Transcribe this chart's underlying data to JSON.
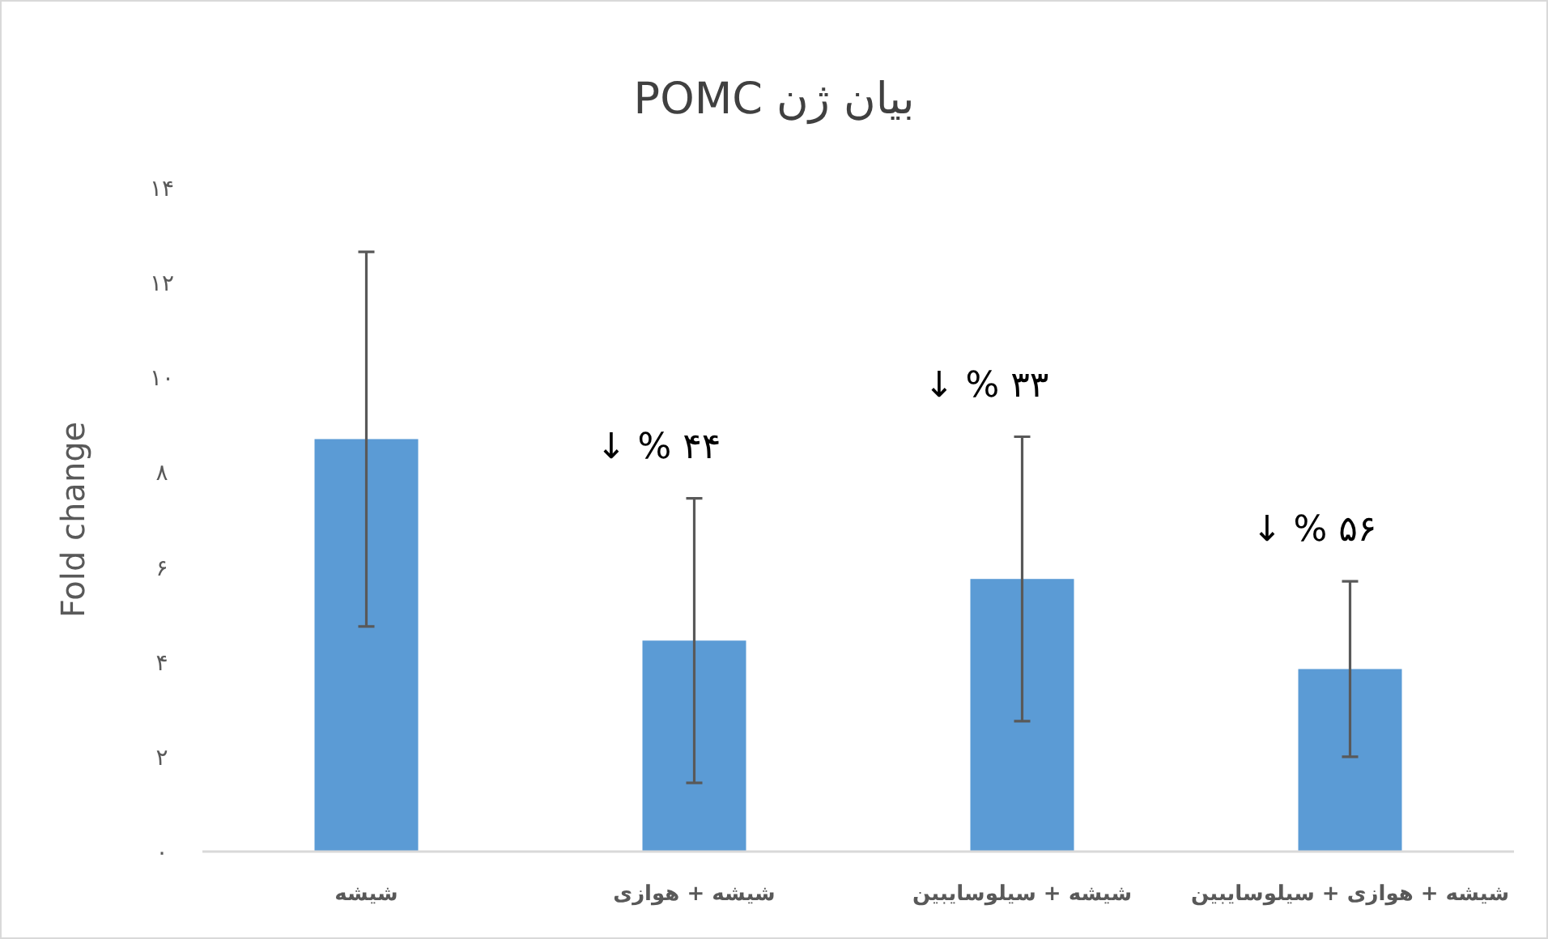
{
  "chart_data": {
    "type": "bar",
    "title": "بیان ژن POMC",
    "ylabel": "Fold change",
    "categories": [
      "شیشه",
      "شیشه + هوازی",
      "شیشه + سیلوسایبین",
      "شیشه + هوازی + سیلوسایبین"
    ],
    "values": [
      8.7,
      4.45,
      5.75,
      3.85
    ],
    "errors": [
      3.95,
      3.0,
      3.0,
      1.85
    ],
    "color": "#5b9bd5",
    "ylim": [
      0,
      14
    ],
    "yticks": [
      {
        "value": 0,
        "label": "۰"
      },
      {
        "value": 2,
        "label": "۲"
      },
      {
        "value": 4,
        "label": "۴"
      },
      {
        "value": 6,
        "label": "۶"
      },
      {
        "value": 8,
        "label": "۸"
      },
      {
        "value": 10,
        "label": "۱۰"
      },
      {
        "value": 12,
        "label": "۱۲"
      },
      {
        "value": 14,
        "label": "۱۴"
      }
    ],
    "grid": false,
    "annotations": [
      "↓ % ۴۴",
      "↓ % ۳۳",
      "↓ % ۵۶"
    ]
  }
}
